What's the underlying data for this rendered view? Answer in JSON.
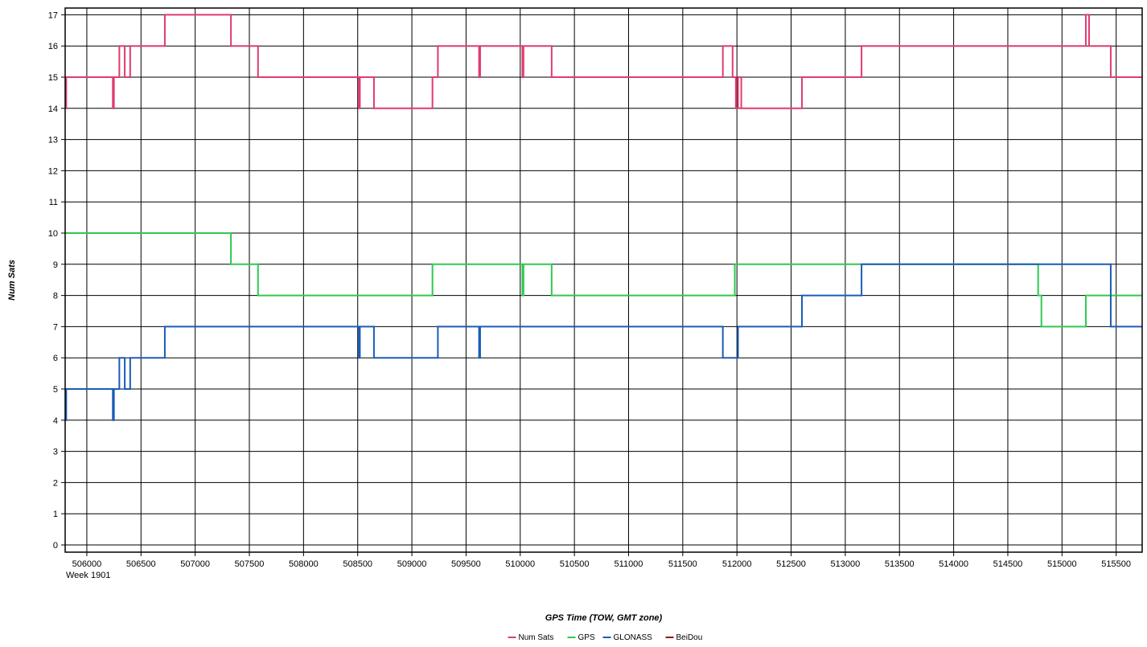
{
  "chart_data": {
    "type": "line",
    "title": "",
    "xlabel": "GPS Time (TOW, GMT zone)",
    "ylabel": "Num Sats",
    "x_sublabel": "Week 1901",
    "xlim": [
      505800,
      515740
    ],
    "ylim": [
      0,
      17
    ],
    "x_ticks": [
      506000,
      506500,
      507000,
      507500,
      508000,
      508500,
      509000,
      509500,
      510000,
      510500,
      511000,
      511500,
      512000,
      512500,
      513000,
      513500,
      514000,
      514500,
      515000,
      515500
    ],
    "y_ticks": [
      0,
      1,
      2,
      3,
      4,
      5,
      6,
      7,
      8,
      9,
      10,
      11,
      12,
      13,
      14,
      15,
      16,
      17
    ],
    "grid": true,
    "legend_position": "bottom-center",
    "series": [
      {
        "name": "Num Sats",
        "color": "#e03c6e",
        "step": true,
        "x": [
          505800,
          505810,
          506240,
          506250,
          506300,
          506350,
          506400,
          506720,
          507330,
          507580,
          508510,
          508520,
          508650,
          509190,
          509240,
          509620,
          509630,
          510020,
          510030,
          510290,
          511870,
          511960,
          511990,
          512010,
          512040,
          512600,
          513150,
          515220,
          515250,
          515450
        ],
        "y": [
          14,
          15,
          14,
          15,
          16,
          15,
          16,
          17,
          16,
          15,
          14,
          15,
          14,
          15,
          16,
          15,
          16,
          15,
          16,
          15,
          16,
          15,
          14,
          15,
          14,
          15,
          16,
          17,
          16,
          15
        ]
      },
      {
        "name": "GPS",
        "color": "#2fc94f",
        "step": true,
        "x": [
          505800,
          507330,
          507580,
          509190,
          510020,
          510030,
          510290,
          511980,
          514780,
          514810,
          515220
        ],
        "y": [
          10,
          9,
          8,
          9,
          8,
          9,
          8,
          9,
          8,
          7,
          8
        ]
      },
      {
        "name": "GLONASS",
        "color": "#1a5cb8",
        "step": true,
        "x": [
          505800,
          505810,
          506240,
          506250,
          506300,
          506350,
          506400,
          506720,
          508510,
          508520,
          508650,
          509240,
          509620,
          509630,
          511870,
          512010,
          512600,
          513150,
          515450
        ],
        "y": [
          4,
          5,
          4,
          5,
          6,
          5,
          6,
          7,
          6,
          7,
          6,
          7,
          6,
          7,
          6,
          7,
          8,
          9,
          7
        ]
      },
      {
        "name": "BeiDou",
        "color": "#8b1a1a",
        "step": true,
        "x": [],
        "y": []
      }
    ]
  }
}
